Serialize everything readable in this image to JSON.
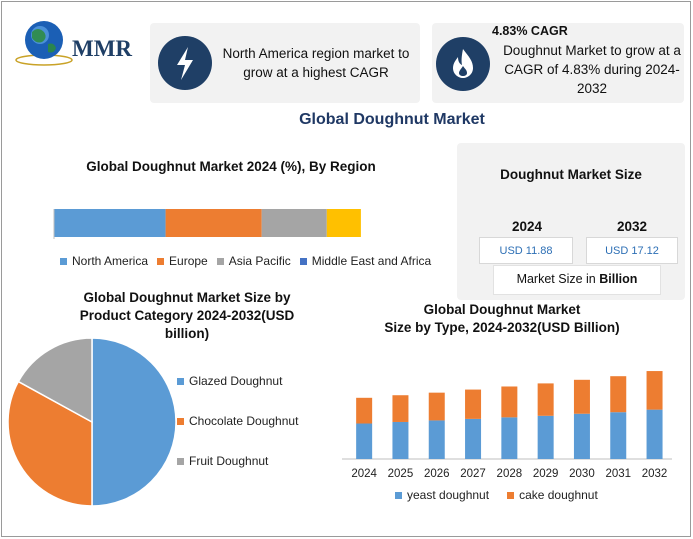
{
  "colors": {
    "blue": "#5b9bd5",
    "orange": "#ed7d31",
    "gray": "#a5a5a5",
    "yellow": "#ffc000",
    "navy": "#1f3f66",
    "title_navy": "#1f3864"
  },
  "logo": {
    "text": "MMR",
    "icon": "globe-icon"
  },
  "highlights": [
    {
      "icon": "lightning-icon",
      "text": "North America region market to grow at a highest CAGR"
    },
    {
      "icon": "flame-icon",
      "heading": "4.83% CAGR",
      "text": "Doughnut Market to grow at a CAGR of 4.83% during 2024-2032"
    }
  ],
  "main_title": "Global Doughnut Market",
  "region_chart": {
    "title": "Global Doughnut Market 2024 (%), By Region",
    "legend": [
      "North America",
      "Europe",
      "Asia Pacific",
      "Middle East and Africa"
    ]
  },
  "size_panel": {
    "title": "Doughnut Market Size",
    "year_a": "2024",
    "year_b": "2032",
    "value_a": "USD 11.88",
    "value_b": "USD 17.12",
    "note_prefix": "Market Size in ",
    "note_bold": "Billion"
  },
  "category_chart": {
    "title_lines": [
      "Global Doughnut Market Size by",
      "Product Category 2024-2032(USD",
      "billion)"
    ],
    "legend": [
      "Glazed Doughnut",
      "Chocolate Doughnut",
      "Fruit Doughnut"
    ]
  },
  "type_chart": {
    "title_lines": [
      "Global Doughnut Market",
      "Size by Type, 2024-2032(USD Billion)"
    ],
    "legend": [
      "yeast doughnut",
      "cake doughnut"
    ]
  },
  "chart_data": [
    {
      "type": "bar",
      "stacked": true,
      "orientation": "horizontal",
      "title": "Global Doughnut Market 2024 (%), By Region",
      "series": [
        {
          "name": "North America",
          "values": [
            36
          ]
        },
        {
          "name": "Europe",
          "values": [
            31
          ]
        },
        {
          "name": "Asia Pacific",
          "values": [
            21
          ]
        },
        {
          "name": "Middle East and Africa",
          "values": [
            11
          ]
        }
      ],
      "xlim": [
        0,
        100
      ],
      "legend_position": "bottom"
    },
    {
      "type": "pie",
      "title": "Global Doughnut Market Size by Product Category 2024-2032(USD billion)",
      "labels": [
        "Glazed Doughnut",
        "Chocolate Doughnut",
        "Fruit Doughnut"
      ],
      "values": [
        50,
        33,
        17
      ],
      "legend_position": "right"
    },
    {
      "type": "bar",
      "stacked": true,
      "title": "Global Doughnut Market Size by Type, 2024-2032(USD Billion)",
      "categories": [
        "2024",
        "2025",
        "2026",
        "2027",
        "2028",
        "2029",
        "2030",
        "2031",
        "2032"
      ],
      "series": [
        {
          "name": "yeast doughnut",
          "values": [
            6.9,
            7.2,
            7.5,
            7.8,
            8.1,
            8.4,
            8.8,
            9.1,
            9.6
          ]
        },
        {
          "name": "cake doughnut",
          "values": [
            5.0,
            5.2,
            5.4,
            5.7,
            6.0,
            6.3,
            6.6,
            7.0,
            7.5
          ]
        }
      ],
      "ylim": [
        0,
        17.5
      ],
      "legend_position": "bottom"
    }
  ]
}
